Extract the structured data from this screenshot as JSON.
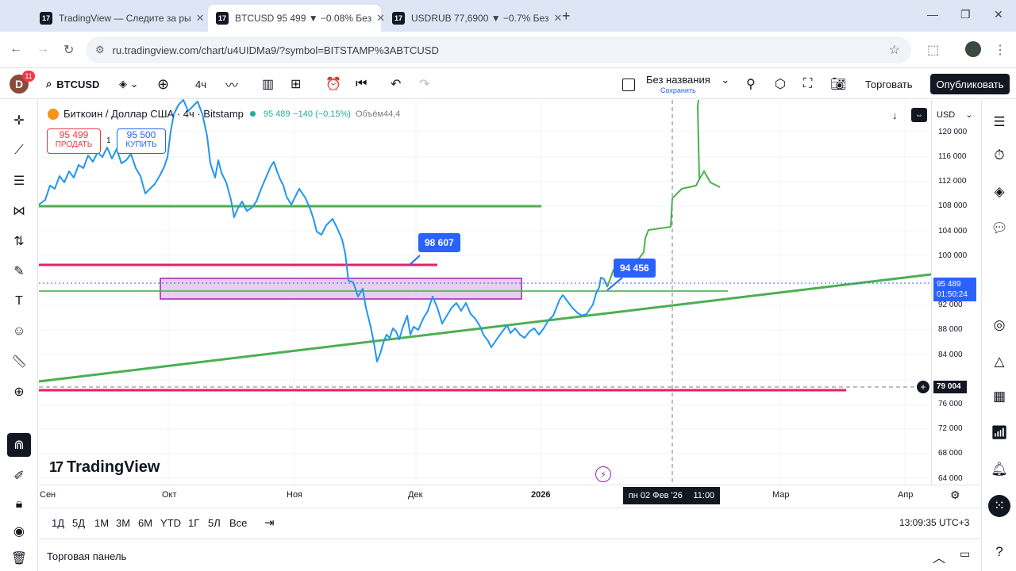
{
  "browser": {
    "tabs": [
      {
        "title": "TradingView — Следите за ры",
        "active": false
      },
      {
        "title": "BTCUSD 95 499 ▼ −0.08% Без",
        "active": true
      },
      {
        "title": "USDRUB 77,6900 ▼ −0.7% Без",
        "active": false
      }
    ],
    "url": "ru.tradingview.com/chart/u4UIDMa9/?symbol=BITSTAMP%3ABTCUSD"
  },
  "tvbar": {
    "avatar_letter": "D",
    "notifications": "11",
    "symbol": "BTCUSD",
    "interval": "4ч",
    "layout_name": "Без названия",
    "layout_status": "Сохранить",
    "trade_label": "Торговать",
    "publish_label": "Опубликовать"
  },
  "legend": {
    "title": "Биткоин / Доллар США · 4ч · Bitstamp",
    "price": "95 489",
    "change": "−140 (−0,15%)",
    "volume_label": "Объём",
    "volume": "44,4"
  },
  "order": {
    "sell_price": "95 499",
    "sell_label": "ПРОДАТЬ",
    "spread": "1",
    "buy_price": "95 500",
    "buy_label": "КУПИТЬ"
  },
  "price_axis": {
    "currency": "USD",
    "ticks": [
      "120 000",
      "116 000",
      "112 000",
      "108 000",
      "104 000",
      "100 000",
      "92 000",
      "88 000",
      "84 000",
      "76 000",
      "72 000",
      "68 000",
      "64 000"
    ],
    "current_price": "95 489",
    "countdown": "01:50:24",
    "crosshair_price": "79 004"
  },
  "time_axis": {
    "labels": [
      "Сен",
      "Окт",
      "Ноя",
      "Дек",
      "2026",
      "Мар",
      "Апр"
    ],
    "crosshair_date": "пн 02 Фев '26",
    "crosshair_time": "11:00"
  },
  "annotations": {
    "label_high": "98 607",
    "label_current": "94 456"
  },
  "brand": "TradingView",
  "ranges": [
    "1Д",
    "5Д",
    "1М",
    "3М",
    "6М",
    "YTD",
    "1Г",
    "5Л",
    "Все"
  ],
  "clock": "13:09:35 UTC+3",
  "trade_panel": "Торговая панель",
  "colors": {
    "price_line": "#2196f3",
    "support_line": "#4caf50",
    "resistance_line": "#e91e63",
    "zone_fill": "#e1bee7",
    "zone_border": "#9c27b0"
  }
}
